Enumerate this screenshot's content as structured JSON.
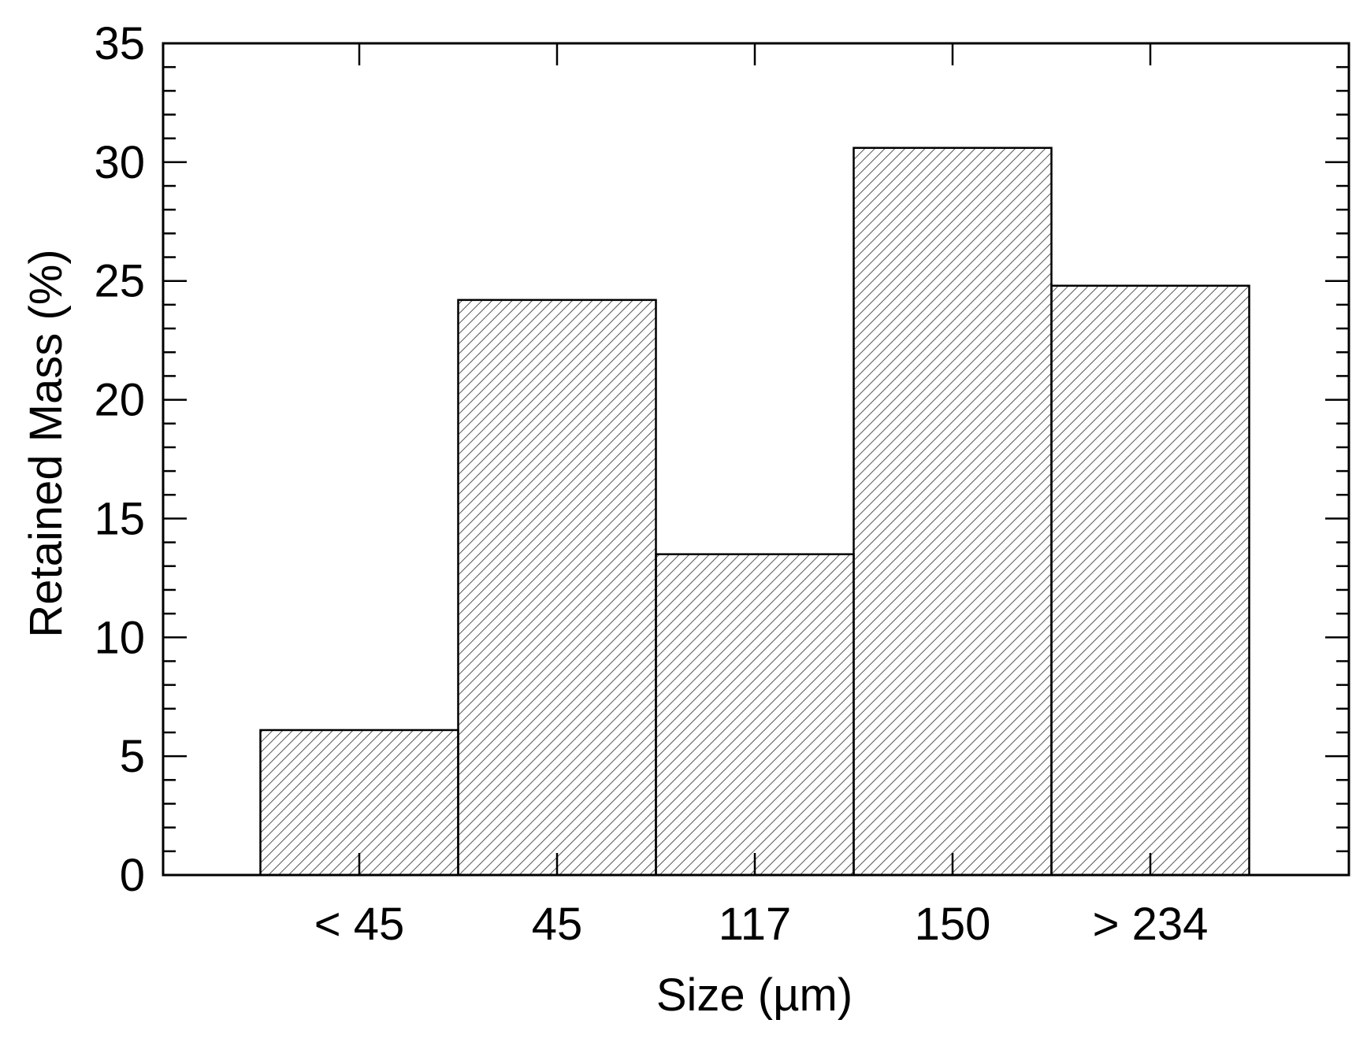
{
  "chart_data": {
    "type": "bar",
    "xlabel": "Size (µm)",
    "ylabel": "Retained Mass (%)",
    "categories": [
      "< 45",
      "45",
      "117",
      "150",
      "> 234"
    ],
    "values": [
      6.1,
      24.2,
      13.5,
      30.6,
      24.8
    ],
    "ylim": [
      0,
      35
    ],
    "yticks": [
      0,
      5,
      10,
      15,
      20,
      25,
      30,
      35
    ],
    "y_minor_step": 1,
    "grid": false,
    "bar_fill": "diagonal-hatch",
    "colors": {
      "bar_stroke": "#000000",
      "hatch": "#555555",
      "background": "#ffffff"
    }
  }
}
